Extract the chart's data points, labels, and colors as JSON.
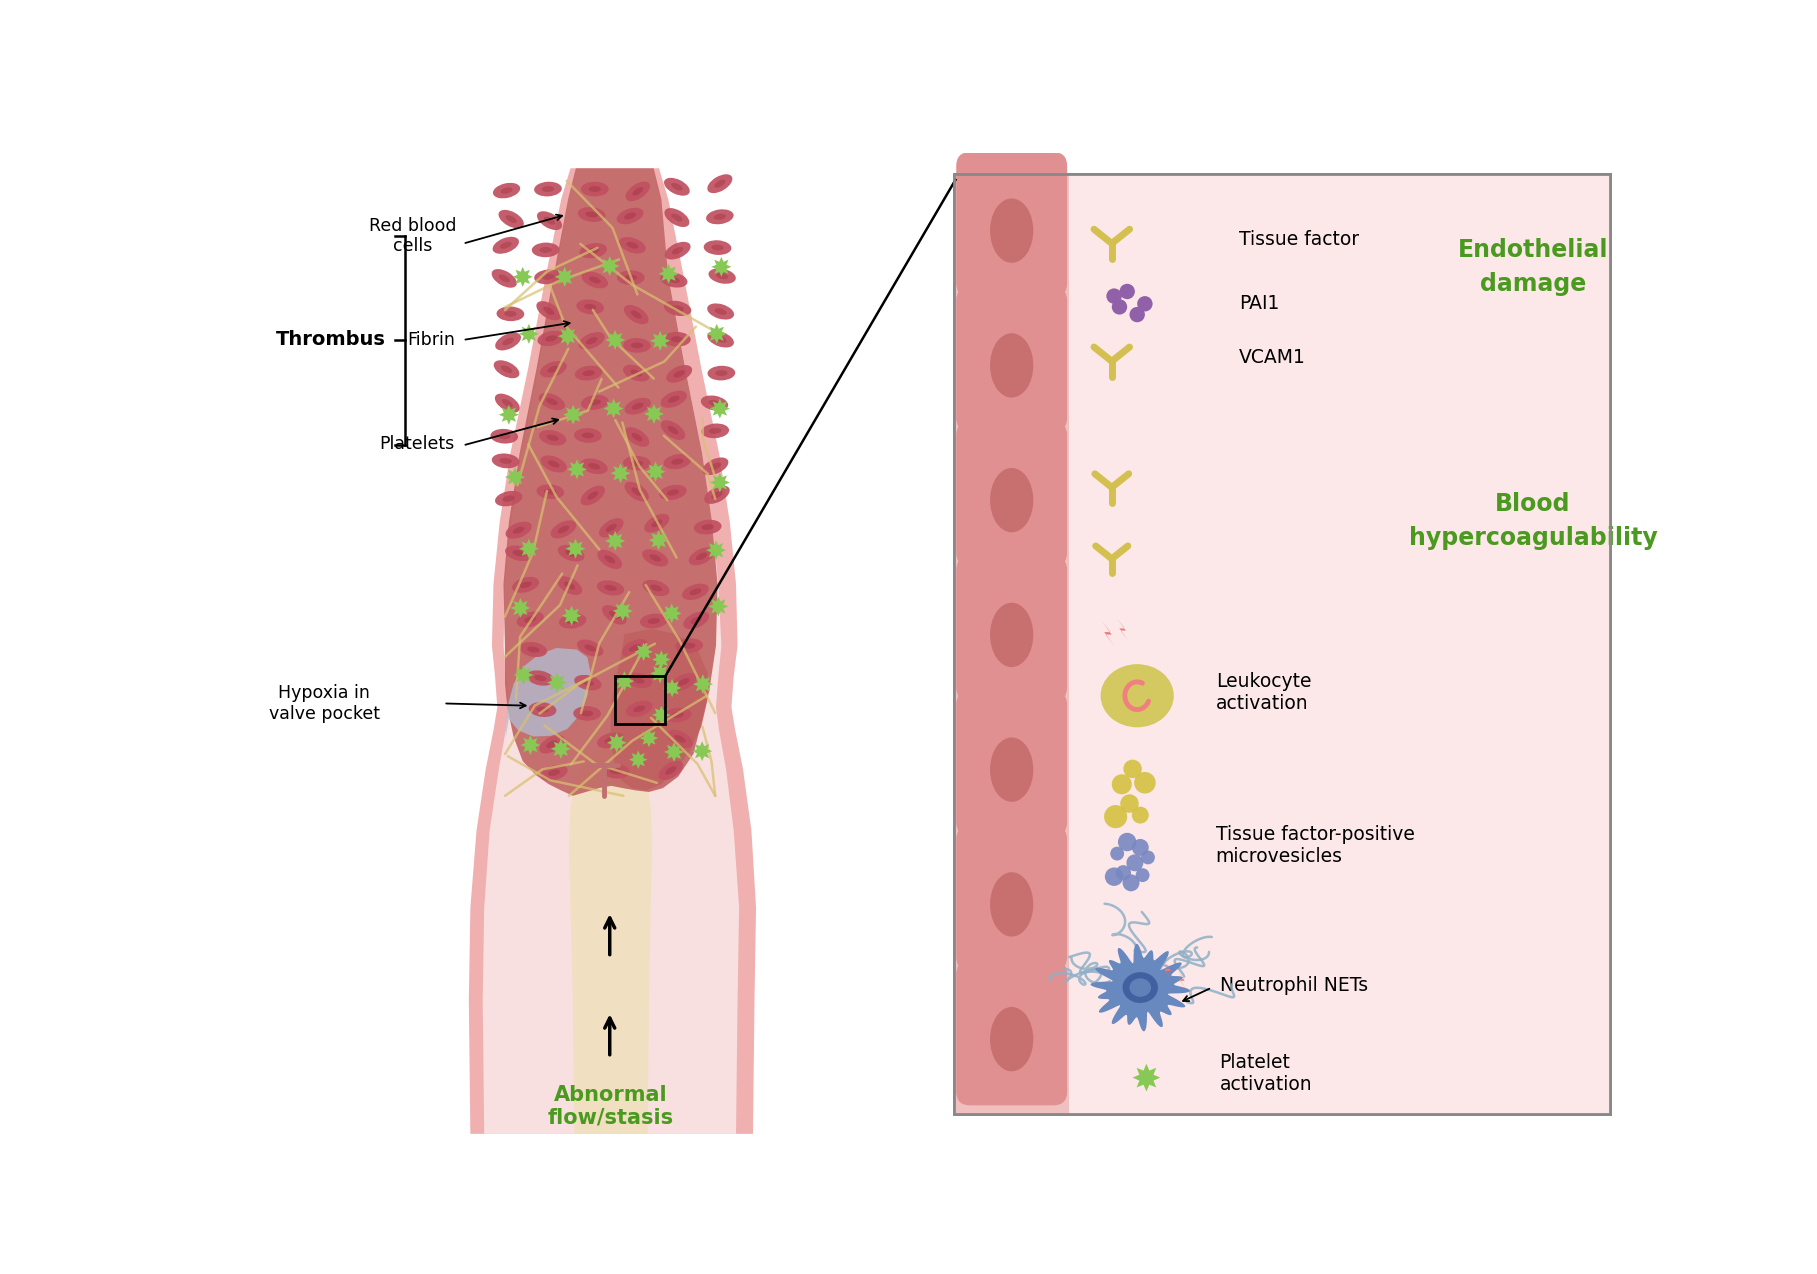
{
  "bg_color": "#ffffff",
  "green_label_color": "#4a9a1f",
  "title_left": "Thrombus",
  "label_rbc": "Red blood\ncells",
  "label_fibrin": "Fibrin",
  "label_platelets": "Platelets",
  "label_hypoxia": "Hypoxia in\nvalve pocket",
  "label_abnormal": "Abnormal\nflow/stasis",
  "label_endothelial": "Endothelial\ndamage",
  "label_blood": "Blood\nhypercoagulability",
  "label_tissue_factor": "Tissue factor",
  "label_pai1": "PAI1",
  "label_vcam1": "VCAM1",
  "label_leukocyte": "Leukocyte\nactivation",
  "label_microvesicles": "Tissue factor-positive\nmicrovesicles",
  "label_neutrophil": "Neutrophil NETs",
  "label_platelet_act": "Platelet\nactivation"
}
